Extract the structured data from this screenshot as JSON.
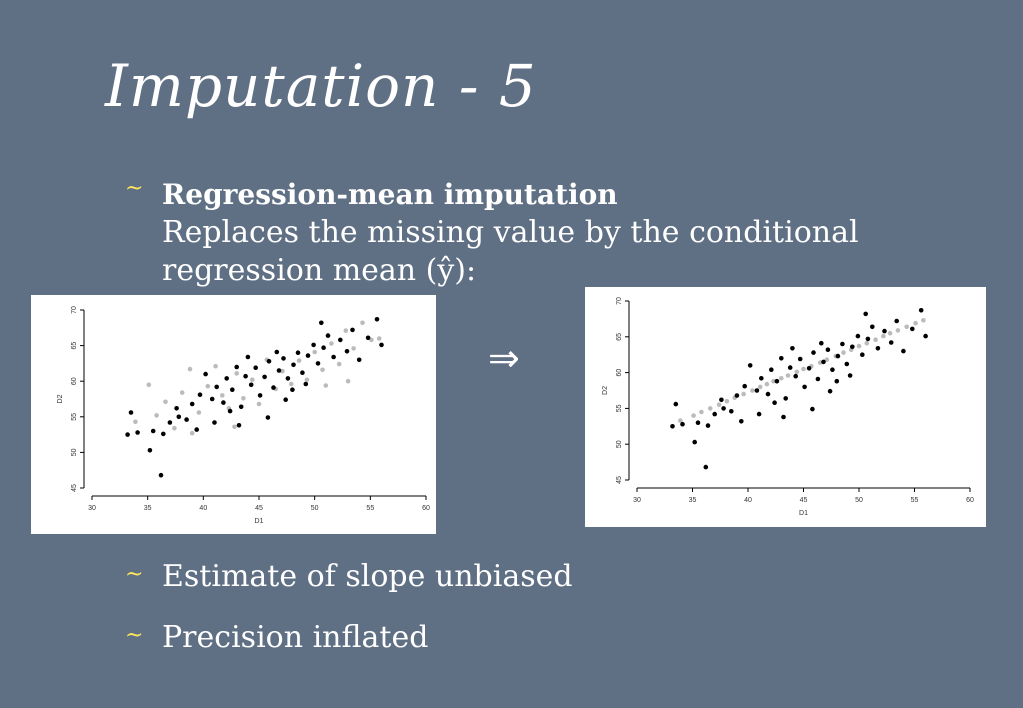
{
  "slide": {
    "title": "Imputation - 5",
    "bullets": [
      {
        "marker": "~",
        "heading": "Regression-mean imputation",
        "lines": [
          "Replaces the missing value by the conditional",
          "regression mean (ŷ):"
        ]
      },
      {
        "marker": "~",
        "text": "Estimate of slope unbiased"
      },
      {
        "marker": "~",
        "text": "Precision inflated"
      }
    ],
    "arrow": "⇒"
  },
  "chart_data": [
    {
      "type": "scatter",
      "title": "",
      "xlabel": "D1",
      "ylabel": "D2",
      "xlim": [
        30,
        60
      ],
      "ylim": [
        45,
        70
      ],
      "xticks": [
        "30",
        "35",
        "40",
        "45",
        "50",
        "55",
        "60"
      ],
      "yticks": [
        "45",
        "50",
        "55",
        "60",
        "65",
        "70"
      ],
      "grid": false,
      "series": [
        {
          "color": "#000000",
          "points": [
            [
              33.2,
              52.5
            ],
            [
              33.5,
              55.6
            ],
            [
              34.1,
              52.8
            ],
            [
              35.2,
              50.3
            ],
            [
              35.5,
              53.0
            ],
            [
              36.2,
              46.8
            ],
            [
              36.4,
              52.6
            ],
            [
              37.0,
              54.2
            ],
            [
              37.8,
              55.0
            ],
            [
              38.5,
              54.6
            ],
            [
              39.0,
              56.8
            ],
            [
              39.7,
              58.1
            ],
            [
              40.2,
              61.0
            ],
            [
              40.8,
              57.5
            ],
            [
              41.2,
              59.2
            ],
            [
              41.8,
              57.0
            ],
            [
              42.1,
              60.4
            ],
            [
              42.6,
              58.8
            ],
            [
              43.0,
              62.0
            ],
            [
              43.4,
              56.4
            ],
            [
              43.8,
              60.7
            ],
            [
              44.3,
              59.5
            ],
            [
              44.7,
              61.9
            ],
            [
              45.1,
              58.0
            ],
            [
              45.5,
              60.6
            ],
            [
              45.9,
              62.8
            ],
            [
              46.3,
              59.1
            ],
            [
              46.8,
              61.5
            ],
            [
              47.2,
              63.2
            ],
            [
              47.6,
              60.4
            ],
            [
              48.1,
              62.3
            ],
            [
              48.5,
              64.0
            ],
            [
              48.9,
              61.2
            ],
            [
              49.4,
              63.6
            ],
            [
              49.9,
              65.1
            ],
            [
              50.3,
              62.5
            ],
            [
              50.8,
              64.7
            ],
            [
              51.2,
              66.4
            ],
            [
              51.7,
              63.4
            ],
            [
              52.3,
              65.8
            ],
            [
              52.9,
              64.2
            ],
            [
              53.4,
              67.2
            ],
            [
              54.0,
              63.0
            ],
            [
              54.8,
              66.1
            ],
            [
              55.6,
              68.7
            ],
            [
              56.0,
              65.1
            ],
            [
              41.0,
              54.2
            ],
            [
              43.2,
              53.8
            ],
            [
              45.8,
              54.9
            ],
            [
              47.4,
              57.4
            ],
            [
              37.6,
              56.2
            ],
            [
              39.4,
              53.2
            ],
            [
              44.0,
              63.4
            ],
            [
              46.6,
              64.1
            ],
            [
              49.2,
              59.6
            ],
            [
              50.6,
              68.2
            ],
            [
              42.4,
              55.8
            ],
            [
              48.0,
              58.8
            ]
          ]
        },
        {
          "color": "#bbbbbb",
          "points": [
            [
              33.9,
              54.3
            ],
            [
              35.1,
              59.5
            ],
            [
              35.8,
              55.2
            ],
            [
              36.6,
              57.1
            ],
            [
              37.4,
              53.4
            ],
            [
              38.1,
              58.4
            ],
            [
              38.8,
              61.7
            ],
            [
              39.6,
              55.6
            ],
            [
              40.4,
              59.3
            ],
            [
              41.1,
              62.1
            ],
            [
              41.7,
              58.0
            ],
            [
              42.3,
              56.2
            ],
            [
              43.0,
              61.1
            ],
            [
              43.6,
              57.6
            ],
            [
              44.4,
              60.2
            ],
            [
              45.0,
              56.8
            ],
            [
              45.7,
              63.0
            ],
            [
              46.5,
              58.9
            ],
            [
              47.1,
              61.4
            ],
            [
              47.9,
              59.6
            ],
            [
              48.6,
              62.9
            ],
            [
              49.3,
              60.2
            ],
            [
              50.0,
              64.1
            ],
            [
              50.7,
              61.6
            ],
            [
              51.5,
              65.3
            ],
            [
              52.2,
              62.4
            ],
            [
              52.8,
              67.1
            ],
            [
              53.5,
              64.6
            ],
            [
              54.3,
              68.2
            ],
            [
              55.1,
              65.8
            ],
            [
              55.8,
              66.0
            ],
            [
              53.0,
              60.0
            ],
            [
              51.0,
              59.4
            ],
            [
              39.0,
              52.7
            ],
            [
              42.8,
              53.6
            ]
          ]
        }
      ]
    },
    {
      "type": "scatter",
      "title": "",
      "xlabel": "D1",
      "ylabel": "D2",
      "xlim": [
        30,
        60
      ],
      "ylim": [
        45,
        70
      ],
      "xticks": [
        "30",
        "35",
        "40",
        "45",
        "50",
        "55",
        "60"
      ],
      "yticks": [
        "45",
        "50",
        "55",
        "60",
        "65",
        "70"
      ],
      "grid": false,
      "series": [
        {
          "color": "#000000",
          "points": [
            [
              33.2,
              52.5
            ],
            [
              33.5,
              55.6
            ],
            [
              34.1,
              52.8
            ],
            [
              35.2,
              50.3
            ],
            [
              35.5,
              53.0
            ],
            [
              36.2,
              46.8
            ],
            [
              36.4,
              52.6
            ],
            [
              37.0,
              54.2
            ],
            [
              37.8,
              55.0
            ],
            [
              38.5,
              54.6
            ],
            [
              39.0,
              56.8
            ],
            [
              39.7,
              58.1
            ],
            [
              40.2,
              61.0
            ],
            [
              40.8,
              57.5
            ],
            [
              41.2,
              59.2
            ],
            [
              41.8,
              57.0
            ],
            [
              42.1,
              60.4
            ],
            [
              42.6,
              58.8
            ],
            [
              43.0,
              62.0
            ],
            [
              43.4,
              56.4
            ],
            [
              43.8,
              60.7
            ],
            [
              44.3,
              59.5
            ],
            [
              44.7,
              61.9
            ],
            [
              45.1,
              58.0
            ],
            [
              45.5,
              60.6
            ],
            [
              45.9,
              62.8
            ],
            [
              46.3,
              59.1
            ],
            [
              46.8,
              61.5
            ],
            [
              47.2,
              63.2
            ],
            [
              47.6,
              60.4
            ],
            [
              48.1,
              62.3
            ],
            [
              48.5,
              64.0
            ],
            [
              48.9,
              61.2
            ],
            [
              49.4,
              63.6
            ],
            [
              49.9,
              65.1
            ],
            [
              50.3,
              62.5
            ],
            [
              50.8,
              64.7
            ],
            [
              51.2,
              66.4
            ],
            [
              51.7,
              63.4
            ],
            [
              52.3,
              65.8
            ],
            [
              52.9,
              64.2
            ],
            [
              53.4,
              67.2
            ],
            [
              54.0,
              63.0
            ],
            [
              54.8,
              66.1
            ],
            [
              55.6,
              68.7
            ],
            [
              56.0,
              65.1
            ],
            [
              41.0,
              54.2
            ],
            [
              43.2,
              53.8
            ],
            [
              45.8,
              54.9
            ],
            [
              47.4,
              57.4
            ],
            [
              37.6,
              56.2
            ],
            [
              39.4,
              53.2
            ],
            [
              44.0,
              63.4
            ],
            [
              46.6,
              64.1
            ],
            [
              49.2,
              59.6
            ],
            [
              50.6,
              68.2
            ],
            [
              42.4,
              55.8
            ],
            [
              48.0,
              58.8
            ]
          ]
        },
        {
          "color": "#bbbbbb",
          "points": [
            [
              33.9,
              53.3
            ],
            [
              35.1,
              54.0
            ],
            [
              35.8,
              54.5
            ],
            [
              36.6,
              55.0
            ],
            [
              37.4,
              55.5
            ],
            [
              38.1,
              56.0
            ],
            [
              38.8,
              56.5
            ],
            [
              39.6,
              57.0
            ],
            [
              40.4,
              57.5
            ],
            [
              41.1,
              58.0
            ],
            [
              41.7,
              58.4
            ],
            [
              42.3,
              58.8
            ],
            [
              43.0,
              59.2
            ],
            [
              43.6,
              59.6
            ],
            [
              44.4,
              60.1
            ],
            [
              45.0,
              60.5
            ],
            [
              45.7,
              60.9
            ],
            [
              46.5,
              61.4
            ],
            [
              47.1,
              61.8
            ],
            [
              47.9,
              62.3
            ],
            [
              48.6,
              62.8
            ],
            [
              49.3,
              63.2
            ],
            [
              50.0,
              63.7
            ],
            [
              50.7,
              64.1
            ],
            [
              51.5,
              64.6
            ],
            [
              52.2,
              65.1
            ],
            [
              52.8,
              65.5
            ],
            [
              53.5,
              65.9
            ],
            [
              54.3,
              66.4
            ],
            [
              55.1,
              66.9
            ],
            [
              55.8,
              67.3
            ]
          ]
        }
      ]
    }
  ]
}
